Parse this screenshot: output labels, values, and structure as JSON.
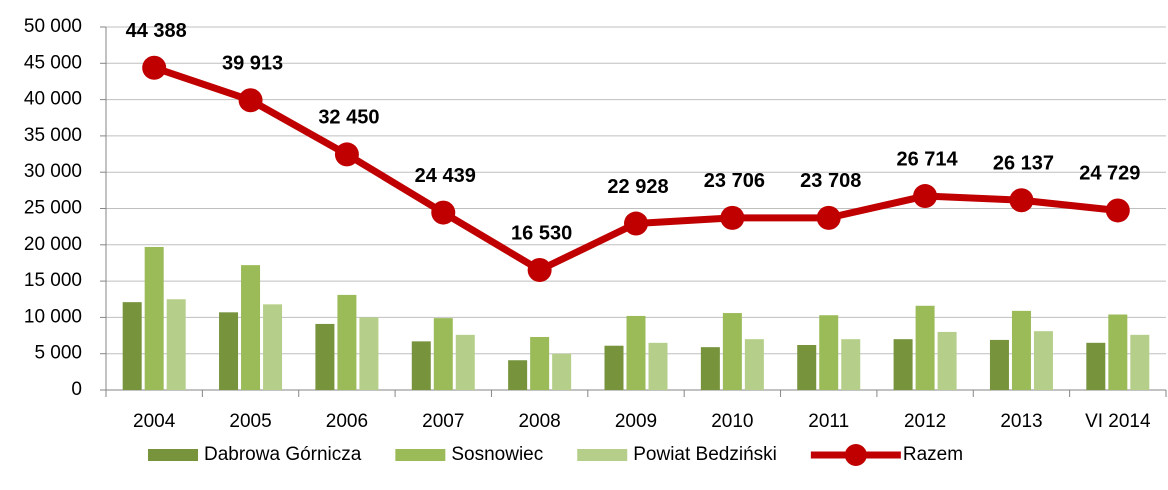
{
  "chart_data": {
    "type": "bar_line",
    "categories": [
      "2004",
      "2005",
      "2006",
      "2007",
      "2008",
      "2009",
      "2010",
      "2011",
      "2012",
      "2013",
      "VI 2014"
    ],
    "series": [
      {
        "name": "Dabrowa Górnicza",
        "type": "bar",
        "color": "#77933c",
        "values": [
          12100,
          10700,
          9100,
          6700,
          4100,
          6100,
          5900,
          6200,
          7000,
          6900,
          6500
        ]
      },
      {
        "name": "Sosnowiec",
        "type": "bar",
        "color": "#9bbb59",
        "values": [
          19700,
          17200,
          13100,
          9900,
          7300,
          10200,
          10600,
          10300,
          11600,
          10900,
          10400
        ]
      },
      {
        "name": "Powiat Bedziński",
        "type": "bar",
        "color": "#b5cf8a",
        "values": [
          12500,
          11800,
          10000,
          7600,
          5000,
          6500,
          7000,
          7000,
          8000,
          8100,
          7600
        ]
      },
      {
        "name": "Razem",
        "type": "line",
        "color": "#c00000",
        "values": [
          44388,
          39913,
          32450,
          24439,
          16530,
          22928,
          23706,
          23708,
          26714,
          26137,
          24729
        ],
        "value_labels": [
          "44 388",
          "39 913",
          "32 450",
          "24 439",
          "16 530",
          "22 928",
          "23 706",
          "23 708",
          "26 714",
          "26 137",
          "24 729"
        ]
      }
    ],
    "ylim": [
      0,
      50000
    ],
    "yticks": [
      0,
      {
        "value": 5000,
        "label": "5 000"
      },
      {
        "value": 10000,
        "label": "10 000"
      },
      {
        "value": 15000,
        "label": "15 000"
      },
      {
        "value": 20000,
        "label": "20 000"
      },
      {
        "value": 25000,
        "label": "25 000"
      },
      {
        "value": 30000,
        "label": "30 000"
      },
      {
        "value": 35000,
        "label": "35 000"
      },
      {
        "value": 40000,
        "label": "40 000"
      },
      {
        "value": 45000,
        "label": "45 000"
      },
      {
        "value": 50000,
        "label": "50 000"
      }
    ],
    "grid": true,
    "legend": "bottom"
  }
}
